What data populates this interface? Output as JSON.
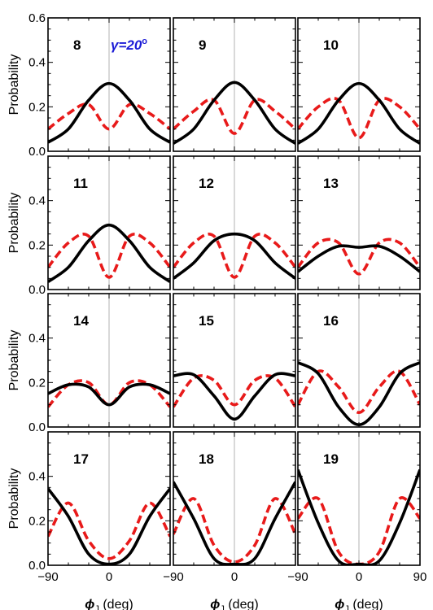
{
  "figure": {
    "ylabel": "Probability",
    "xlabel_var": "ϕ",
    "xlabel_sub": "J",
    "xlabel_unit": " (deg)",
    "annotation_gamma": "γ=20",
    "annotation_degree": "o",
    "x_tick_labels": [
      "−90",
      "0",
      "90"
    ],
    "y_tick_labels": [
      "0.0",
      "0.2",
      "0.4",
      "0.6"
    ],
    "colors": {
      "solid": "#000000",
      "dashed": "#e81a1a",
      "annotation": "#1a1ad6",
      "centerline": "#b3b3b3"
    }
  },
  "chart_data": [
    {
      "type": "line",
      "label": "8",
      "xlim": [
        -90,
        90
      ],
      "ylim": [
        0,
        0.6
      ],
      "series": [
        {
          "style": "solid",
          "x": [
            -90,
            -60,
            -30,
            0,
            30,
            60,
            90
          ],
          "y": [
            0.04,
            0.1,
            0.23,
            0.305,
            0.23,
            0.1,
            0.04
          ]
        },
        {
          "style": "dashed",
          "x": [
            -90,
            -60,
            -30,
            0,
            30,
            60,
            90
          ],
          "y": [
            0.1,
            0.17,
            0.21,
            0.1,
            0.21,
            0.17,
            0.1
          ]
        }
      ]
    },
    {
      "type": "line",
      "label": "9",
      "xlim": [
        -90,
        90
      ],
      "ylim": [
        0,
        0.6
      ],
      "series": [
        {
          "style": "solid",
          "x": [
            -90,
            -60,
            -30,
            0,
            30,
            60,
            90
          ],
          "y": [
            0.035,
            0.1,
            0.23,
            0.31,
            0.23,
            0.1,
            0.035
          ]
        },
        {
          "style": "dashed",
          "x": [
            -90,
            -60,
            -30,
            0,
            30,
            60,
            90
          ],
          "y": [
            0.1,
            0.18,
            0.23,
            0.08,
            0.23,
            0.18,
            0.1
          ]
        }
      ]
    },
    {
      "type": "line",
      "label": "10",
      "xlim": [
        -90,
        90
      ],
      "ylim": [
        0,
        0.6
      ],
      "series": [
        {
          "style": "solid",
          "x": [
            -90,
            -60,
            -30,
            0,
            30,
            60,
            90
          ],
          "y": [
            0.035,
            0.1,
            0.23,
            0.305,
            0.23,
            0.1,
            0.035
          ]
        },
        {
          "style": "dashed",
          "x": [
            -90,
            -60,
            -30,
            0,
            30,
            60,
            90
          ],
          "y": [
            0.1,
            0.2,
            0.23,
            0.06,
            0.23,
            0.2,
            0.1
          ]
        }
      ]
    },
    {
      "type": "line",
      "label": "11",
      "xlim": [
        -90,
        90
      ],
      "ylim": [
        0,
        0.6
      ],
      "series": [
        {
          "style": "solid",
          "x": [
            -90,
            -60,
            -30,
            0,
            30,
            60,
            90
          ],
          "y": [
            0.035,
            0.1,
            0.22,
            0.29,
            0.22,
            0.1,
            0.035
          ]
        },
        {
          "style": "dashed",
          "x": [
            -90,
            -60,
            -30,
            0,
            30,
            60,
            90
          ],
          "y": [
            0.1,
            0.21,
            0.24,
            0.055,
            0.24,
            0.21,
            0.1
          ]
        }
      ]
    },
    {
      "type": "line",
      "label": "12",
      "xlim": [
        -90,
        90
      ],
      "ylim": [
        0,
        0.6
      ],
      "series": [
        {
          "style": "solid",
          "x": [
            -90,
            -60,
            -30,
            0,
            30,
            60,
            90
          ],
          "y": [
            0.05,
            0.12,
            0.22,
            0.25,
            0.22,
            0.12,
            0.05
          ]
        },
        {
          "style": "dashed",
          "x": [
            -90,
            -60,
            -30,
            0,
            30,
            60,
            90
          ],
          "y": [
            0.1,
            0.21,
            0.24,
            0.055,
            0.24,
            0.21,
            0.1
          ]
        }
      ]
    },
    {
      "type": "line",
      "label": "13",
      "xlim": [
        -90,
        90
      ],
      "ylim": [
        0,
        0.6
      ],
      "series": [
        {
          "style": "solid",
          "x": [
            -90,
            -60,
            -30,
            0,
            30,
            60,
            90
          ],
          "y": [
            0.08,
            0.15,
            0.195,
            0.19,
            0.195,
            0.15,
            0.08
          ]
        },
        {
          "style": "dashed",
          "x": [
            -90,
            -60,
            -30,
            0,
            30,
            60,
            90
          ],
          "y": [
            0.1,
            0.21,
            0.21,
            0.07,
            0.21,
            0.21,
            0.1
          ]
        }
      ]
    },
    {
      "type": "line",
      "label": "14",
      "xlim": [
        -90,
        90
      ],
      "ylim": [
        0,
        0.6
      ],
      "series": [
        {
          "style": "solid",
          "x": [
            -90,
            -60,
            -30,
            0,
            30,
            60,
            90
          ],
          "y": [
            0.15,
            0.19,
            0.18,
            0.1,
            0.18,
            0.19,
            0.15
          ]
        },
        {
          "style": "dashed",
          "x": [
            -90,
            -60,
            -30,
            0,
            30,
            60,
            90
          ],
          "y": [
            0.09,
            0.19,
            0.2,
            0.1,
            0.2,
            0.19,
            0.09
          ]
        }
      ]
    },
    {
      "type": "line",
      "label": "15",
      "xlim": [
        -90,
        90
      ],
      "ylim": [
        0,
        0.6
      ],
      "series": [
        {
          "style": "solid",
          "x": [
            -90,
            -60,
            -30,
            0,
            30,
            60,
            90
          ],
          "y": [
            0.23,
            0.235,
            0.14,
            0.035,
            0.14,
            0.235,
            0.23
          ]
        },
        {
          "style": "dashed",
          "x": [
            -90,
            -60,
            -30,
            0,
            30,
            60,
            90
          ],
          "y": [
            0.09,
            0.22,
            0.21,
            0.1,
            0.21,
            0.22,
            0.09
          ]
        }
      ]
    },
    {
      "type": "line",
      "label": "16",
      "xlim": [
        -90,
        90
      ],
      "ylim": [
        0,
        0.6
      ],
      "series": [
        {
          "style": "solid",
          "x": [
            -90,
            -60,
            -30,
            0,
            30,
            60,
            90
          ],
          "y": [
            0.29,
            0.24,
            0.09,
            0.01,
            0.09,
            0.24,
            0.29
          ]
        },
        {
          "style": "dashed",
          "x": [
            -90,
            -60,
            -30,
            0,
            30,
            60,
            90
          ],
          "y": [
            0.1,
            0.25,
            0.18,
            0.065,
            0.18,
            0.25,
            0.1
          ]
        }
      ]
    },
    {
      "type": "line",
      "label": "17",
      "xlim": [
        -90,
        90
      ],
      "ylim": [
        0,
        0.6
      ],
      "series": [
        {
          "style": "solid",
          "x": [
            -90,
            -60,
            -30,
            0,
            30,
            60,
            90
          ],
          "y": [
            0.345,
            0.22,
            0.05,
            0.005,
            0.05,
            0.22,
            0.345
          ]
        },
        {
          "style": "dashed",
          "x": [
            -90,
            -60,
            -30,
            0,
            30,
            60,
            90
          ],
          "y": [
            0.13,
            0.28,
            0.11,
            0.03,
            0.11,
            0.28,
            0.13
          ]
        }
      ]
    },
    {
      "type": "line",
      "label": "18",
      "xlim": [
        -90,
        90
      ],
      "ylim": [
        0,
        0.6
      ],
      "series": [
        {
          "style": "solid",
          "x": [
            -90,
            -60,
            -30,
            0,
            30,
            60,
            90
          ],
          "y": [
            0.375,
            0.21,
            0.03,
            0.005,
            0.03,
            0.21,
            0.375
          ]
        },
        {
          "style": "dashed",
          "x": [
            -90,
            -60,
            -30,
            0,
            30,
            60,
            90
          ],
          "y": [
            0.14,
            0.3,
            0.09,
            0.015,
            0.09,
            0.3,
            0.14
          ]
        }
      ]
    },
    {
      "type": "line",
      "label": "19",
      "xlim": [
        -90,
        90
      ],
      "ylim": [
        0,
        0.6
      ],
      "series": [
        {
          "style": "solid",
          "x": [
            -90,
            -60,
            -30,
            0,
            30,
            60,
            90
          ],
          "y": [
            0.43,
            0.19,
            0.02,
            0.005,
            0.02,
            0.19,
            0.43
          ]
        },
        {
          "style": "dashed",
          "x": [
            -90,
            -60,
            -30,
            0,
            30,
            60,
            90
          ],
          "y": [
            0.21,
            0.3,
            0.06,
            0.005,
            0.06,
            0.3,
            0.21
          ]
        }
      ]
    }
  ]
}
